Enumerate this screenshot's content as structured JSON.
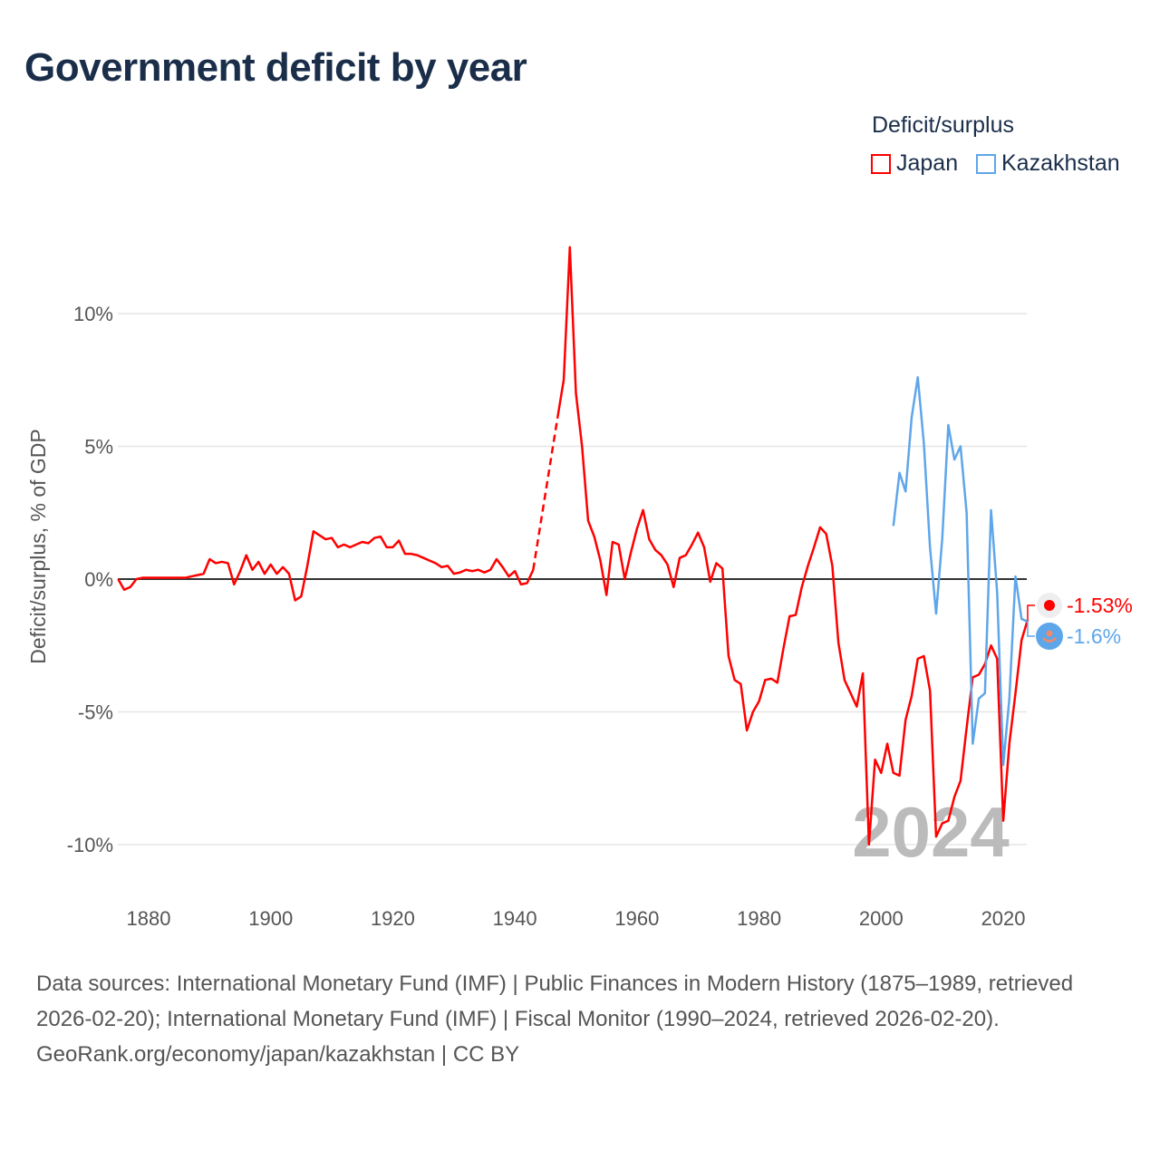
{
  "title": "Government deficit by year",
  "legend": {
    "title": "Deficit/surplus",
    "items": [
      {
        "name": "Japan",
        "color": "#ff0000"
      },
      {
        "name": "Kazakhstan",
        "color": "#5ea6ea"
      }
    ]
  },
  "footer": {
    "sources": "Data sources: International Monetary Fund (IMF) | Public Finances in Modern History (1875–1989, retrieved 2026-02-20); International Monetary Fund (IMF) | Fiscal Monitor (1990–2024, retrieved 2026-02-20).",
    "credit": "GeoRank.org/economy/japan/kazakhstan | CC BY"
  },
  "chart_data": {
    "type": "line",
    "title": "Government deficit by year",
    "xlabel": "",
    "ylabel": "Deficit/surplus, % of GDP",
    "xlim": [
      1875,
      2024
    ],
    "ylim": [
      -12,
      13
    ],
    "grid": true,
    "legend_position": "top-right",
    "year_watermark": "2024",
    "x_ticks": [
      1880,
      1900,
      1920,
      1940,
      1960,
      1980,
      2000,
      2020
    ],
    "y_ticks": [
      {
        "v": 10,
        "label": "10%"
      },
      {
        "v": 5,
        "label": "5%"
      },
      {
        "v": 0,
        "label": "0%"
      },
      {
        "v": -5,
        "label": "-5%"
      },
      {
        "v": -10,
        "label": "-10%"
      }
    ],
    "series": [
      {
        "name": "Japan",
        "color": "#ff0000",
        "start_year": 1875,
        "end_label": "-1.53%",
        "values": [
          0,
          -0.4,
          -0.3,
          0,
          0.05,
          0.05,
          0.05,
          0.05,
          0.05,
          0.05,
          0.05,
          0.05,
          0.1,
          0.15,
          0.2,
          0.75,
          0.6,
          0.65,
          0.6,
          -0.2,
          0.3,
          0.9,
          0.35,
          0.65,
          0.2,
          0.55,
          0.2,
          0.45,
          0.2,
          -0.8,
          -0.65,
          0.5,
          1.8,
          1.65,
          1.5,
          1.55,
          1.2,
          1.3,
          1.2,
          1.3,
          1.4,
          1.35,
          1.55,
          1.6,
          1.2,
          1.2,
          1.45,
          0.95,
          0.95,
          0.9,
          0.8,
          0.7,
          0.6,
          0.45,
          0.5,
          0.2,
          0.25,
          0.35,
          0.3,
          0.35,
          0.25,
          0.35,
          0.75,
          0.45,
          0.1,
          0.3,
          -0.2,
          -0.15,
          0.35,
          null,
          null,
          null,
          6.1,
          7.5,
          12.5,
          7.0,
          5.0,
          2.2,
          1.6,
          0.7,
          -0.6,
          1.4,
          1.3,
          0,
          1.0,
          1.9,
          2.6,
          1.5,
          1.1,
          0.9,
          0.55,
          -0.3,
          0.8,
          0.9,
          1.3,
          1.75,
          1.2,
          -0.1,
          0.6,
          0.4,
          -2.9,
          -3.8,
          -3.95,
          -5.7,
          -5.0,
          -4.6,
          -3.8,
          -3.75,
          -3.9,
          -2.6,
          -1.4,
          -1.35,
          -0.3,
          0.5,
          1.2,
          1.95,
          1.7,
          0.5,
          -2.4,
          -3.8,
          -4.3,
          -4.8,
          -3.55,
          -10.0,
          -6.8,
          -7.3,
          -6.2,
          -7.3,
          -7.4,
          -5.3,
          -4.4,
          -3.0,
          -2.9,
          -4.2,
          -9.7,
          -9.2,
          -9.1,
          -8.2,
          -7.6,
          -5.6,
          -3.7,
          -3.6,
          -3.2,
          -2.5,
          -3.0,
          -9.1,
          -6.2,
          -4.3,
          -2.3,
          -1.53
        ]
      },
      {
        "name": "Kazakhstan",
        "color": "#5ea6ea",
        "start_year": 2002,
        "end_label": "-1.6%",
        "values": [
          2.0,
          4.0,
          3.3,
          6.1,
          7.6,
          5.1,
          1.2,
          -1.3,
          1.5,
          5.8,
          4.5,
          5.0,
          2.5,
          -6.2,
          -4.5,
          -4.3,
          2.6,
          -0.5,
          -7.0,
          -4.5,
          0.1,
          -1.5,
          -1.6
        ]
      }
    ]
  }
}
